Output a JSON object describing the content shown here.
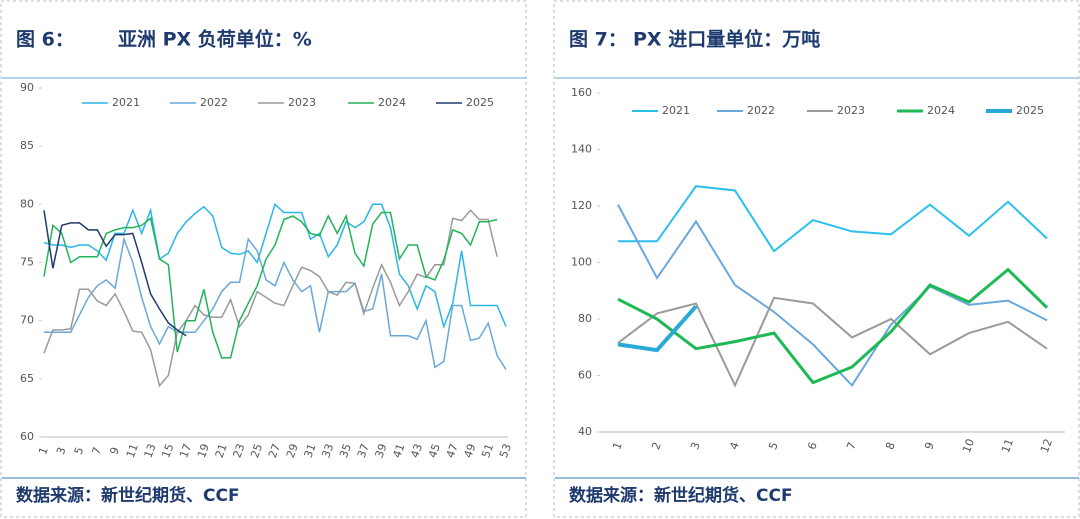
{
  "chart_data": [
    {
      "type": "line",
      "figure_label": "图 6：",
      "title": "亚洲 PX 负荷单位：%",
      "source": "数据来源：新世纪期货、CCF",
      "categories": [
        1,
        null,
        3,
        null,
        5,
        null,
        7,
        null,
        9,
        null,
        11,
        null,
        13,
        null,
        15,
        null,
        17,
        null,
        19,
        null,
        21,
        null,
        23,
        null,
        25,
        null,
        27,
        null,
        29,
        null,
        31,
        null,
        33,
        null,
        35,
        null,
        37,
        null,
        39,
        null,
        41,
        null,
        43,
        null,
        45,
        null,
        47,
        null,
        49,
        null,
        51,
        null,
        53
      ],
      "ylim": [
        60,
        90
      ],
      "yticks": [
        60,
        65,
        70,
        75,
        80,
        85,
        90
      ],
      "series": [
        {
          "name": "2021",
          "color": "#29b6e8",
          "values": [
            76.7,
            76.5,
            76.5,
            76.3,
            76.5,
            76.5,
            76,
            75.2,
            77.5,
            77.5,
            79.5,
            77.5,
            79.5,
            75.3,
            75.8,
            77.5,
            78.5,
            79.2,
            79.8,
            79,
            76.3,
            75.8,
            75.7,
            76,
            75,
            77.5,
            80,
            79.3,
            79.3,
            79.3,
            77,
            77.5,
            75.5,
            76.5,
            78.5,
            78,
            78.5,
            80,
            80,
            78,
            74,
            73,
            71,
            73,
            72.5,
            69.5,
            71.5,
            76,
            71.3,
            71.3,
            71.3,
            71.3,
            69.5
          ]
        },
        {
          "name": "2022",
          "color": "#6aa8dc",
          "values": [
            69,
            69,
            69,
            69,
            70.5,
            72,
            73,
            73.5,
            72.8,
            77,
            75,
            72,
            69.5,
            68,
            69.5,
            69,
            69,
            69,
            70,
            71,
            72.5,
            73.3,
            73.3,
            77,
            76,
            73.5,
            73,
            75,
            73.5,
            72.5,
            73,
            69,
            72.5,
            72.5,
            72.5,
            73.2,
            70.8,
            71,
            74,
            68.7,
            68.7,
            68.7,
            68.4,
            70,
            66,
            66.5,
            71.3,
            71.3,
            68.3,
            68.5,
            69.8,
            67,
            65.8
          ]
        },
        {
          "name": "2023",
          "color": "#9a9a9a",
          "values": [
            67.2,
            69.2,
            69.2,
            69.3,
            72.7,
            72.7,
            71.7,
            71.3,
            72.3,
            70.8,
            69.1,
            69,
            67.5,
            64.4,
            65.3,
            69,
            70,
            71.3,
            70.5,
            70.3,
            70.3,
            71.8,
            69.5,
            70.5,
            72.5,
            72,
            71.5,
            71.3,
            73,
            74.6,
            74.3,
            73.8,
            72.5,
            72.2,
            73.3,
            73.2,
            70.6,
            72.8,
            74.8,
            73.3,
            71.3,
            72.5,
            74,
            73.7,
            74.8,
            74.8,
            78.8,
            78.6,
            79.5,
            78.7,
            78.7,
            75.5,
            null
          ]
        },
        {
          "name": "2024",
          "color": "#22b35a",
          "values": [
            73.8,
            78.2,
            77.5,
            75,
            75.5,
            75.5,
            75.5,
            77.5,
            77.8,
            78,
            78,
            78.2,
            78.8,
            75.3,
            74.8,
            67.3,
            70,
            70,
            72.7,
            69,
            66.8,
            66.8,
            70,
            71.5,
            73,
            75.3,
            76.5,
            78.7,
            79,
            78.5,
            77.5,
            77.3,
            79,
            77.5,
            79,
            75.8,
            74.7,
            78.3,
            79.3,
            79.3,
            75.3,
            76.5,
            76.5,
            73.8,
            73.5,
            75.2,
            77.8,
            77.5,
            76.5,
            78.5,
            78.5,
            78.7,
            null
          ]
        },
        {
          "name": "2025",
          "color": "#1f3a6e",
          "values": [
            79.5,
            74.5,
            78.2,
            78.4,
            78.4,
            77.8,
            77.8,
            76.4,
            77.4,
            77.4,
            77.5,
            75,
            72.3,
            71,
            69.8,
            69.2,
            68.7,
            null,
            null,
            null,
            null,
            null,
            null,
            null,
            null,
            null,
            null,
            null,
            null,
            null,
            null,
            null,
            null,
            null,
            null,
            null,
            null,
            null,
            null,
            null,
            null,
            null,
            null,
            null,
            null,
            null,
            null,
            null,
            null,
            null,
            null,
            null,
            null
          ]
        }
      ]
    },
    {
      "type": "line",
      "figure_label": "图 7：",
      "title": "PX 进口量单位：万吨",
      "source": "数据来源：新世纪期货、CCF",
      "categories": [
        1,
        2,
        3,
        4,
        5,
        6,
        7,
        8,
        9,
        10,
        11,
        12
      ],
      "ylim": [
        40,
        160
      ],
      "yticks": [
        40,
        60,
        80,
        100,
        120,
        140,
        160
      ],
      "series": [
        {
          "name": "2021",
          "color": "#29c0ec",
          "values": [
            107.5,
            107.5,
            127,
            125.5,
            104,
            115,
            111,
            110,
            120.5,
            109.5,
            121.5,
            108.5
          ]
        },
        {
          "name": "2022",
          "color": "#6aa8dc",
          "values": [
            120.5,
            94.5,
            114.5,
            92,
            82.5,
            71,
            56.5,
            78,
            91.5,
            85,
            86.5,
            79.5
          ]
        },
        {
          "name": "2023",
          "color": "#9a9a9a",
          "values": [
            71.5,
            82,
            85.5,
            56.5,
            87.5,
            85.5,
            73.5,
            80,
            67.5,
            75,
            79,
            69.5
          ]
        },
        {
          "name": "2024",
          "color": "#1db954",
          "values": [
            87,
            80,
            69.5,
            72,
            75,
            57.5,
            63,
            75.5,
            92,
            86,
            97.5,
            84
          ]
        },
        {
          "name": "2025",
          "color": "#2aa9d8",
          "values": [
            71,
            69,
            84.5,
            null,
            null,
            null,
            null,
            null,
            null,
            null,
            null,
            null
          ]
        }
      ]
    }
  ]
}
